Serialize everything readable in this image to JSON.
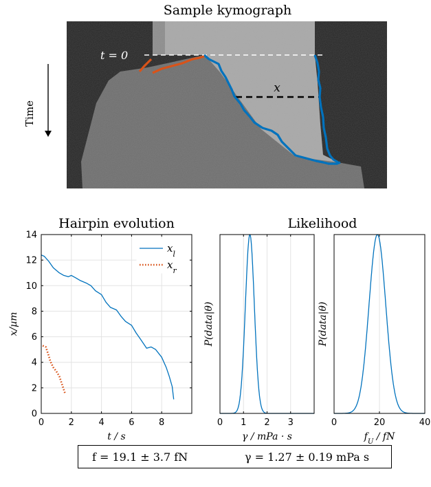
{
  "kymograph": {
    "title": "Sample kymograph",
    "time_label": "Time",
    "t0_label": "t = 0",
    "x_label": "x"
  },
  "chart_data": [
    {
      "type": "line",
      "title": "Hairpin evolution",
      "xlabel": "t / s",
      "ylabel": "x/µm",
      "xlim": [
        0,
        10
      ],
      "ylim": [
        0,
        14
      ],
      "xticks": [
        "0",
        "2",
        "4",
        "6",
        "8"
      ],
      "yticks": [
        "0",
        "2",
        "4",
        "6",
        "8",
        "10",
        "12",
        "14"
      ],
      "grid": true,
      "legend": "top-right",
      "series": [
        {
          "name": "x_l",
          "legend_label": "x_l",
          "color": "#0072bd",
          "style": "solid",
          "x": [
            0.0,
            0.2,
            0.5,
            0.8,
            1.0,
            1.2,
            1.5,
            1.8,
            2.0,
            2.3,
            2.6,
            3.0,
            3.3,
            3.6,
            4.0,
            4.3,
            4.6,
            5.0,
            5.3,
            5.6,
            6.0,
            6.3,
            6.6,
            7.0,
            7.3,
            7.6,
            8.0,
            8.3,
            8.5,
            8.7,
            8.8
          ],
          "values": [
            12.4,
            12.3,
            11.9,
            11.4,
            11.2,
            11.0,
            10.8,
            10.7,
            10.8,
            10.6,
            10.4,
            10.2,
            10.0,
            9.6,
            9.3,
            8.7,
            8.3,
            8.1,
            7.6,
            7.2,
            6.9,
            6.3,
            5.8,
            5.1,
            5.2,
            5.0,
            4.4,
            3.6,
            2.9,
            2.1,
            1.1
          ]
        },
        {
          "name": "x_r",
          "legend_label": "x_r",
          "color": "#d95319",
          "style": "dotted",
          "x": [
            0.1,
            0.3,
            0.5,
            0.6,
            0.8,
            1.0,
            1.2,
            1.4,
            1.6
          ],
          "values": [
            5.3,
            5.2,
            4.5,
            4.1,
            3.6,
            3.3,
            2.9,
            2.2,
            1.5
          ]
        }
      ]
    },
    {
      "type": "line",
      "title": "Likelihood",
      "xlabel": "γ / mPa · s",
      "ylabel": "P(data|θ)",
      "xlim": [
        0,
        4
      ],
      "xticks": [
        "0",
        "1",
        "2",
        "3"
      ],
      "grid": true,
      "series": [
        {
          "color": "#0072bd",
          "distribution": "gaussian",
          "mean": 1.27,
          "std": 0.19
        }
      ]
    },
    {
      "type": "line",
      "title": "",
      "xlabel": "f_U / fN",
      "ylabel": "P(data|θ)",
      "xlim": [
        0,
        40
      ],
      "xticks": [
        "0",
        "20",
        "40"
      ],
      "grid": true,
      "series": [
        {
          "color": "#0072bd",
          "distribution": "gaussian",
          "mean": 19.1,
          "std": 3.7
        }
      ]
    }
  ],
  "results": {
    "f": "f = 19.1 ± 3.7 fN",
    "gamma": "γ = 1.27 ± 0.19 mPa s"
  }
}
